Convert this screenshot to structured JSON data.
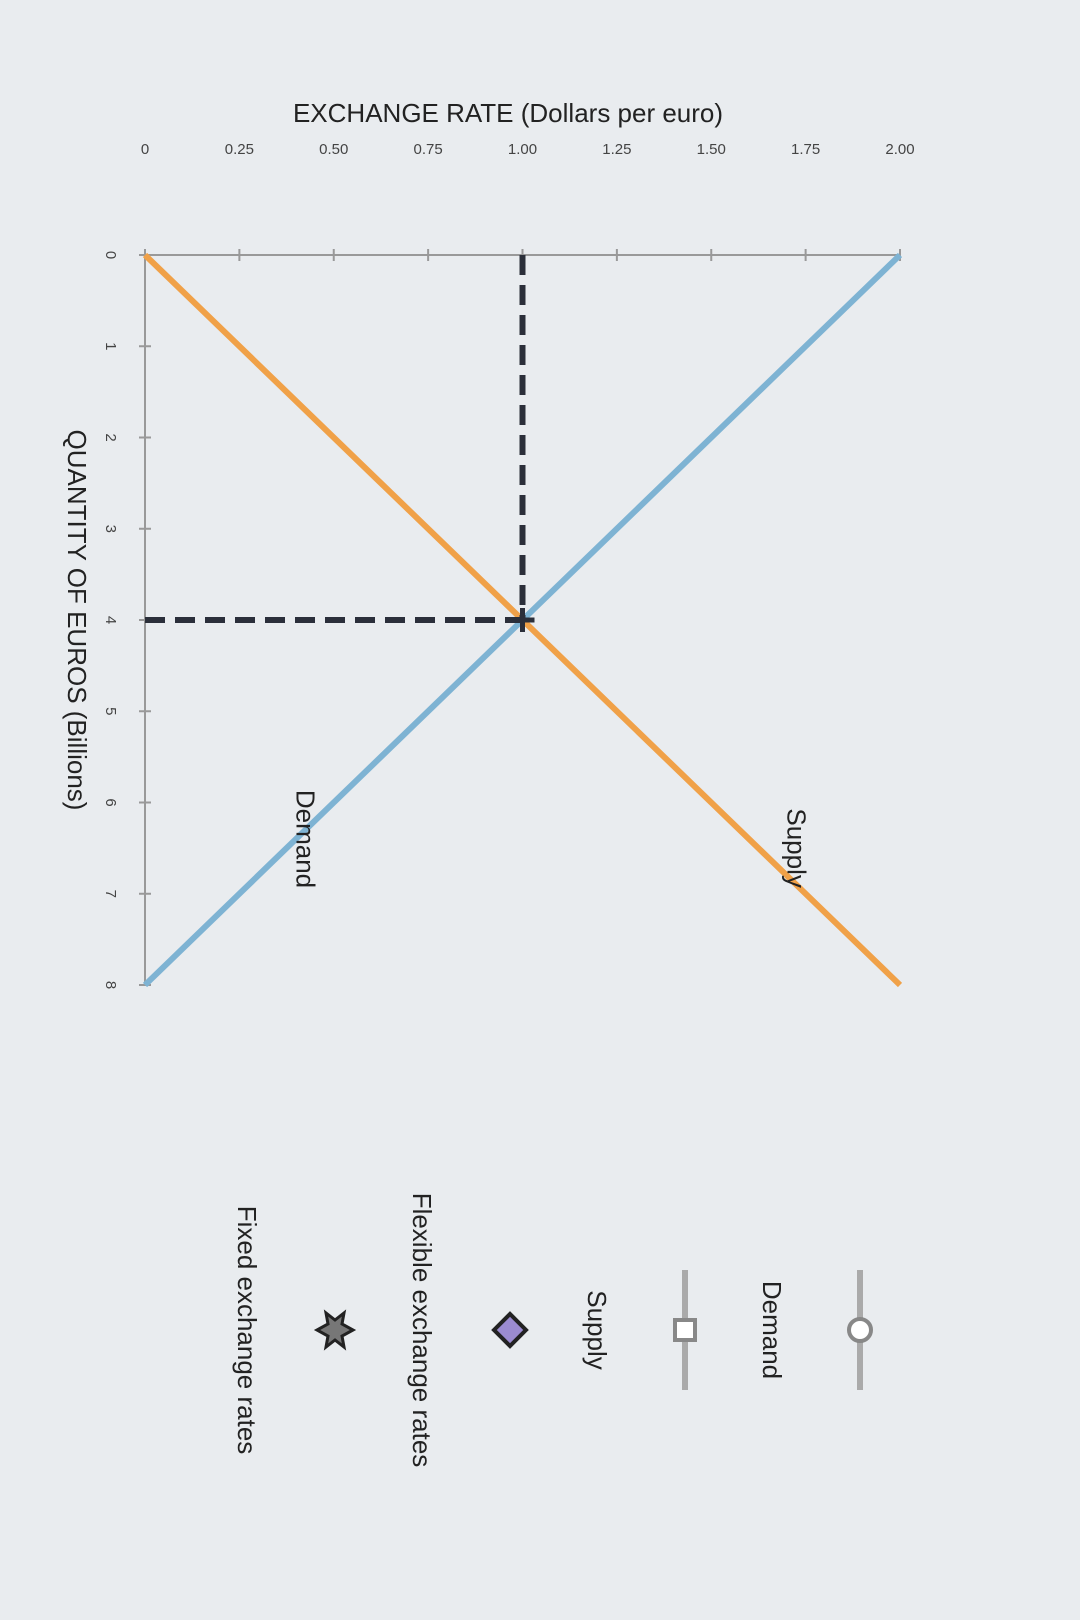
{
  "chart_data": {
    "type": "line",
    "y_label": "EXCHANGE RATE (Dollars per euro)",
    "x_label": "QUANTITY OF EUROS (Billions)",
    "x": [
      0,
      8
    ],
    "series": [
      {
        "name": "Demand",
        "color": "#7eb3d3",
        "values": [
          2,
          0
        ]
      },
      {
        "name": "Supply",
        "color": "#f0a148",
        "values": [
          0,
          2
        ]
      }
    ],
    "equilibrium": {
      "x": 4,
      "y": 1
    },
    "xlim": [
      0,
      8
    ],
    "xticks": [
      0,
      1,
      2,
      3,
      4,
      5,
      6,
      7,
      8
    ],
    "ylim": [
      0,
      2
    ],
    "yticks": [
      0,
      0.25,
      {
        "value": 0.5,
        "label": "0.50"
      },
      0.75,
      {
        "value": 1,
        "label": "1.00"
      },
      1.25,
      {
        "value": 1.5,
        "label": "1.50"
      },
      1.75,
      {
        "value": 2,
        "label": "2.00"
      }
    ],
    "palette": [
      "Flexible exchange rates",
      "Fixed exchange rates"
    ]
  }
}
